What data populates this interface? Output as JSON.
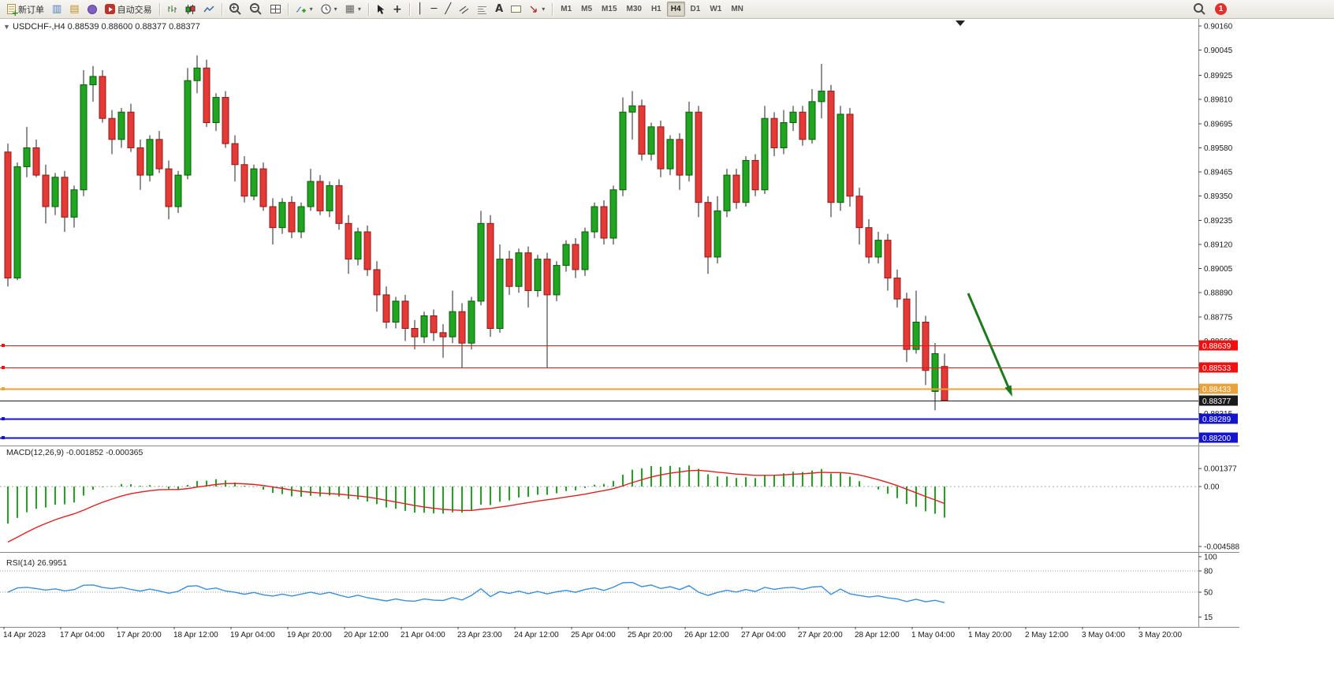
{
  "toolbar": {
    "groups": [
      [
        "new-order",
        "new-chart",
        "profiles",
        "refresh",
        "auto-trading"
      ],
      [
        "chart-bars",
        "chart-candles",
        "chart-line"
      ],
      [
        "zoom-in",
        "zoom-out",
        "tile-windows"
      ],
      [
        "indicators",
        "periods",
        "templates"
      ],
      [
        "cursor",
        "crosshair"
      ],
      [
        "vertical-line",
        "horizontal-line",
        "trendline",
        "channel",
        "fibonacci",
        "text",
        "label",
        "arrows"
      ]
    ],
    "carets": [
      "indicators",
      "periods",
      "templates",
      "arrows"
    ],
    "new_order_label": "新订单",
    "auto_trading_label": "自动交易",
    "text_tool_label": "A",
    "timeframes": [
      "M1",
      "M5",
      "M15",
      "M30",
      "H1",
      "H4",
      "D1",
      "W1",
      "MN"
    ],
    "active_timeframe": "H4",
    "notification_count": "1"
  },
  "chart": {
    "title": "USDCHF-,H4",
    "ohlc": "0.88539 0.88600 0.88377 0.88377",
    "price_axis_ticks": [
      "0.90160",
      "0.90045",
      "0.89925",
      "0.89810",
      "0.89695",
      "0.89580",
      "0.89465",
      "0.89350",
      "0.89235",
      "0.89120",
      "0.89005",
      "0.88890",
      "0.88775",
      "0.88660",
      "0.88545",
      "0.88430",
      "0.88315",
      "0.88200"
    ],
    "hlines": [
      {
        "price": 0.88639,
        "label": "0.88639",
        "color": "#f01010",
        "width": 1
      },
      {
        "price": 0.88533,
        "label": "0.88533",
        "color": "#f01010",
        "width": 1
      },
      {
        "price": 0.88433,
        "label": "0.88433",
        "color": "#e8a33d",
        "width": 2
      },
      {
        "price": 0.88289,
        "label": "0.88289",
        "color": "#1414cc",
        "width": 2
      },
      {
        "price": 0.882,
        "label": "0.88200",
        "color": "#1414cc",
        "width": 2
      }
    ],
    "bid": {
      "price": 0.88377,
      "label": "0.88377",
      "color": "#222222"
    },
    "time_axis": [
      "14 Apr 2023",
      "17 Apr 04:00",
      "17 Apr 20:00",
      "18 Apr 12:00",
      "19 Apr 04:00",
      "19 Apr 20:00",
      "20 Apr 12:00",
      "21 Apr 04:00",
      "23 Apr 23:00",
      "24 Apr 12:00",
      "25 Apr 04:00",
      "25 Apr 20:00",
      "26 Apr 12:00",
      "27 Apr 04:00",
      "27 Apr 20:00",
      "28 Apr 12:00",
      "1 May 04:00",
      "1 May 20:00",
      "2 May 12:00",
      "3 May 04:00",
      "3 May 20:00"
    ]
  },
  "macd": {
    "label": "MACD(12,26,9)",
    "values": "-0.001852 -0.000365",
    "axis": [
      "0.001377",
      "0.00",
      "-0.004588"
    ]
  },
  "rsi": {
    "label": "RSI(14)",
    "value": "26.9951",
    "axis": [
      "100",
      "80",
      "50",
      "15"
    ],
    "levels": [
      80,
      50
    ]
  },
  "colors": {
    "bull": "#1fa51f",
    "bull_border": "#0a5c0a",
    "bear": "#e53935",
    "bear_border": "#8e1b18",
    "wick": "#222222",
    "macd_hist": "#1fa51f",
    "macd_signal": "#e02020",
    "rsi_line": "#3b8fd8",
    "arrow_green": "#1e7a1e",
    "axis_text": "#1a1a1a",
    "panel_border": "#8a8a8a"
  },
  "chart_data": {
    "type": "candlestick",
    "symbol": "USDCHF",
    "timeframe": "H4",
    "annotation": {
      "type": "arrow",
      "direction": "down-right",
      "color": "#1e7a1e"
    },
    "candles": [
      [
        0.8956,
        0.896,
        0.8892,
        0.8896
      ],
      [
        0.8896,
        0.8951,
        0.8895,
        0.8949
      ],
      [
        0.8949,
        0.8968,
        0.8944,
        0.8958
      ],
      [
        0.8958,
        0.8962,
        0.8944,
        0.8945
      ],
      [
        0.8945,
        0.895,
        0.8922,
        0.893
      ],
      [
        0.893,
        0.8946,
        0.8926,
        0.8944
      ],
      [
        0.8944,
        0.8947,
        0.8918,
        0.8925
      ],
      [
        0.8925,
        0.894,
        0.892,
        0.8938
      ],
      [
        0.8938,
        0.8995,
        0.8935,
        0.8988
      ],
      [
        0.8988,
        0.8997,
        0.898,
        0.8992
      ],
      [
        0.8992,
        0.8995,
        0.897,
        0.8972
      ],
      [
        0.8972,
        0.8976,
        0.8955,
        0.8962
      ],
      [
        0.8962,
        0.8977,
        0.8958,
        0.8975
      ],
      [
        0.8975,
        0.8979,
        0.8956,
        0.8958
      ],
      [
        0.8958,
        0.8962,
        0.8938,
        0.8945
      ],
      [
        0.8945,
        0.8964,
        0.8942,
        0.8962
      ],
      [
        0.8962,
        0.8966,
        0.8946,
        0.8948
      ],
      [
        0.8948,
        0.8952,
        0.8924,
        0.893
      ],
      [
        0.893,
        0.8947,
        0.8927,
        0.8945
      ],
      [
        0.8945,
        0.8996,
        0.8943,
        0.899
      ],
      [
        0.899,
        0.9002,
        0.8984,
        0.8996
      ],
      [
        0.8996,
        0.9,
        0.8968,
        0.897
      ],
      [
        0.897,
        0.8984,
        0.8966,
        0.8982
      ],
      [
        0.8982,
        0.8985,
        0.8958,
        0.896
      ],
      [
        0.896,
        0.8964,
        0.8942,
        0.895
      ],
      [
        0.895,
        0.8954,
        0.8932,
        0.8935
      ],
      [
        0.8935,
        0.895,
        0.8933,
        0.8948
      ],
      [
        0.8948,
        0.8951,
        0.8928,
        0.893
      ],
      [
        0.893,
        0.8934,
        0.8912,
        0.892
      ],
      [
        0.892,
        0.8934,
        0.8917,
        0.8932
      ],
      [
        0.8932,
        0.8935,
        0.8915,
        0.8918
      ],
      [
        0.8918,
        0.8932,
        0.8915,
        0.893
      ],
      [
        0.893,
        0.8948,
        0.8928,
        0.8942
      ],
      [
        0.8942,
        0.8945,
        0.8926,
        0.8928
      ],
      [
        0.8928,
        0.8942,
        0.8925,
        0.894
      ],
      [
        0.894,
        0.8943,
        0.8919,
        0.8922
      ],
      [
        0.8922,
        0.8926,
        0.8898,
        0.8905
      ],
      [
        0.8905,
        0.892,
        0.8902,
        0.8918
      ],
      [
        0.8918,
        0.8921,
        0.8897,
        0.89
      ],
      [
        0.89,
        0.8904,
        0.888,
        0.8888
      ],
      [
        0.8888,
        0.8892,
        0.8872,
        0.8875
      ],
      [
        0.8875,
        0.8887,
        0.8872,
        0.8885
      ],
      [
        0.8885,
        0.8888,
        0.8866,
        0.8872
      ],
      [
        0.8872,
        0.8876,
        0.8862,
        0.8868
      ],
      [
        0.8868,
        0.888,
        0.8865,
        0.8878
      ],
      [
        0.8878,
        0.8881,
        0.8866,
        0.887
      ],
      [
        0.887,
        0.8874,
        0.8858,
        0.8868
      ],
      [
        0.8868,
        0.889,
        0.8865,
        0.888
      ],
      [
        0.888,
        0.8884,
        0.88533,
        0.8865
      ],
      [
        0.8865,
        0.8887,
        0.8862,
        0.8885
      ],
      [
        0.8885,
        0.8928,
        0.8883,
        0.8922
      ],
      [
        0.8922,
        0.8926,
        0.8868,
        0.8872
      ],
      [
        0.8872,
        0.8912,
        0.887,
        0.8905
      ],
      [
        0.8905,
        0.8909,
        0.8888,
        0.8892
      ],
      [
        0.8892,
        0.891,
        0.8889,
        0.8908
      ],
      [
        0.8908,
        0.8911,
        0.8882,
        0.889
      ],
      [
        0.889,
        0.8907,
        0.8887,
        0.8905
      ],
      [
        0.8905,
        0.8908,
        0.88533,
        0.8888
      ],
      [
        0.8888,
        0.8904,
        0.8885,
        0.8902
      ],
      [
        0.8902,
        0.8914,
        0.8899,
        0.8912
      ],
      [
        0.8912,
        0.8915,
        0.8896,
        0.89
      ],
      [
        0.89,
        0.892,
        0.8897,
        0.8918
      ],
      [
        0.8918,
        0.8932,
        0.8915,
        0.893
      ],
      [
        0.893,
        0.8933,
        0.8912,
        0.8915
      ],
      [
        0.8915,
        0.894,
        0.8912,
        0.8938
      ],
      [
        0.8938,
        0.8982,
        0.8935,
        0.8975
      ],
      [
        0.8975,
        0.8985,
        0.8962,
        0.8978
      ],
      [
        0.8978,
        0.8981,
        0.8952,
        0.8955
      ],
      [
        0.8955,
        0.897,
        0.8952,
        0.8968
      ],
      [
        0.8968,
        0.8971,
        0.8944,
        0.8948
      ],
      [
        0.8948,
        0.8964,
        0.8945,
        0.8962
      ],
      [
        0.8962,
        0.8965,
        0.8938,
        0.8945
      ],
      [
        0.8945,
        0.898,
        0.8942,
        0.8975
      ],
      [
        0.8975,
        0.8978,
        0.8925,
        0.8932
      ],
      [
        0.8932,
        0.8935,
        0.8898,
        0.8906
      ],
      [
        0.8906,
        0.8935,
        0.8903,
        0.8928
      ],
      [
        0.8928,
        0.8948,
        0.8925,
        0.8945
      ],
      [
        0.8945,
        0.8948,
        0.8929,
        0.8932
      ],
      [
        0.8932,
        0.8954,
        0.893,
        0.8952
      ],
      [
        0.8952,
        0.8955,
        0.8935,
        0.8938
      ],
      [
        0.8938,
        0.8978,
        0.8936,
        0.8972
      ],
      [
        0.8972,
        0.8975,
        0.8954,
        0.8958
      ],
      [
        0.8958,
        0.8976,
        0.8955,
        0.897
      ],
      [
        0.897,
        0.8978,
        0.8966,
        0.8975
      ],
      [
        0.8975,
        0.8978,
        0.8959,
        0.8962
      ],
      [
        0.8962,
        0.8986,
        0.896,
        0.898
      ],
      [
        0.898,
        0.8998,
        0.8972,
        0.8985
      ],
      [
        0.8985,
        0.8988,
        0.8925,
        0.8932
      ],
      [
        0.8932,
        0.8978,
        0.8928,
        0.8974
      ],
      [
        0.8974,
        0.8977,
        0.893,
        0.8935
      ],
      [
        0.8935,
        0.8939,
        0.8912,
        0.892
      ],
      [
        0.892,
        0.8924,
        0.8903,
        0.8906
      ],
      [
        0.8906,
        0.8918,
        0.8903,
        0.8914
      ],
      [
        0.8914,
        0.8917,
        0.889,
        0.8896
      ],
      [
        0.8896,
        0.89,
        0.8882,
        0.8886
      ],
      [
        0.8886,
        0.8889,
        0.8856,
        0.8862
      ],
      [
        0.8862,
        0.889,
        0.886,
        0.8875
      ],
      [
        0.8875,
        0.8878,
        0.8845,
        0.8852
      ],
      [
        0.8842,
        0.8865,
        0.8833,
        0.886
      ],
      [
        0.88539,
        0.886,
        0.88377,
        0.88377
      ]
    ]
  }
}
